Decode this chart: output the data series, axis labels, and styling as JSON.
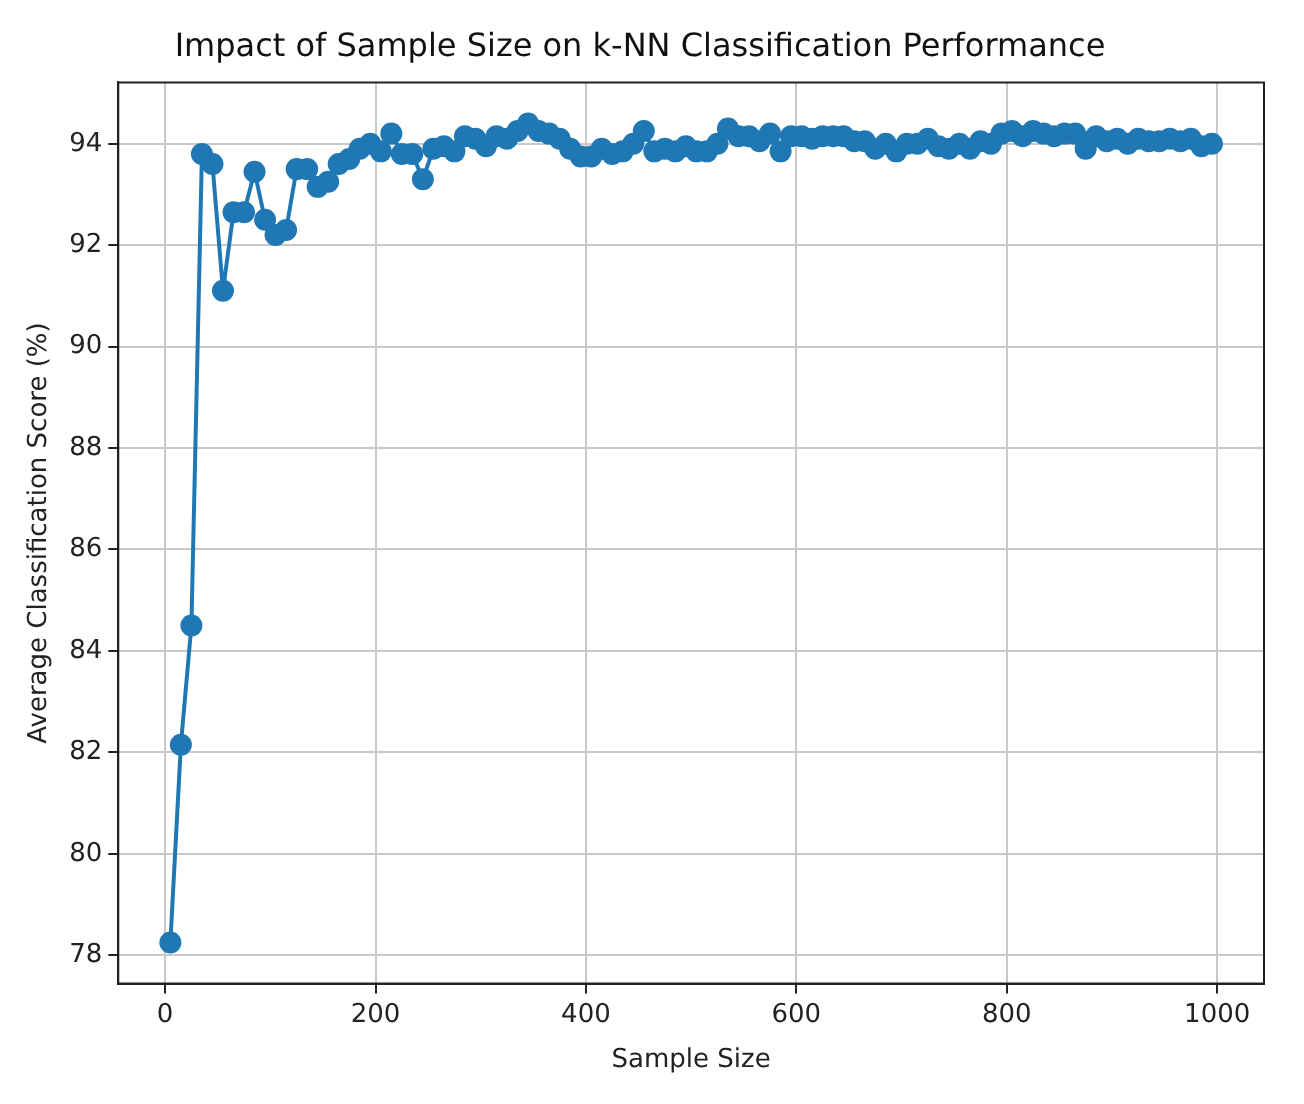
{
  "chart_data": {
    "type": "line",
    "title": "Impact of Sample Size on k-NN Classification Performance",
    "xlabel": "Sample Size",
    "ylabel": "Average Classification Score (%)",
    "x": [
      5,
      15,
      25,
      35,
      45,
      55,
      65,
      75,
      85,
      95,
      105,
      115,
      125,
      135,
      145,
      155,
      165,
      175,
      185,
      195,
      205,
      215,
      225,
      235,
      245,
      255,
      265,
      275,
      285,
      295,
      305,
      315,
      325,
      335,
      345,
      355,
      365,
      375,
      385,
      395,
      405,
      415,
      425,
      435,
      445,
      455,
      465,
      475,
      485,
      495,
      505,
      515,
      525,
      535,
      545,
      555,
      565,
      575,
      585,
      595,
      605,
      615,
      625,
      635,
      645,
      655,
      665,
      675,
      685,
      695,
      705,
      715,
      725,
      735,
      745,
      755,
      765,
      775,
      785,
      795,
      805,
      815,
      825,
      835,
      845,
      855,
      865,
      875,
      885,
      895,
      905,
      915,
      925,
      935,
      945,
      955,
      965,
      975,
      985,
      995
    ],
    "series": [
      {
        "color": "#1f77b4",
        "values": [
          78.25,
          82.15,
          84.5,
          93.8,
          93.6,
          91.1,
          92.65,
          92.65,
          93.45,
          92.5,
          92.2,
          92.3,
          93.5,
          93.5,
          93.15,
          93.25,
          93.6,
          93.7,
          93.9,
          94.0,
          93.85,
          94.2,
          93.8,
          93.8,
          93.3,
          93.9,
          93.95,
          93.85,
          94.15,
          94.1,
          93.95,
          94.15,
          94.1,
          94.25,
          94.4,
          94.25,
          94.2,
          94.1,
          93.9,
          93.75,
          93.75,
          93.9,
          93.8,
          93.85,
          94.0,
          94.25,
          93.85,
          93.9,
          93.85,
          93.95,
          93.85,
          93.85,
          94.0,
          94.3,
          94.15,
          94.15,
          94.05,
          94.2,
          93.85,
          94.15,
          94.15,
          94.1,
          94.15,
          94.15,
          94.15,
          94.05,
          94.05,
          93.9,
          94.0,
          93.85,
          94.0,
          94.0,
          94.1,
          93.95,
          93.9,
          94.0,
          93.9,
          94.05,
          94.0,
          94.2,
          94.25,
          94.15,
          94.25,
          94.2,
          94.15,
          94.2,
          94.2,
          93.9,
          94.15,
          94.05,
          94.1,
          94.0,
          94.1,
          94.05,
          94.05,
          94.1,
          94.05,
          94.1,
          93.95,
          94.0
        ]
      }
    ],
    "xlim": [
      -44.5,
      1044.5
    ],
    "xticks": [
      0,
      200,
      400,
      600,
      800,
      1000
    ],
    "ylim": [
      77.44,
      95.21
    ],
    "yticks": [
      78,
      80,
      82,
      84,
      86,
      88,
      90,
      92,
      94
    ],
    "grid": true,
    "marker": "circle",
    "line_style": "solid",
    "legend": false
  }
}
